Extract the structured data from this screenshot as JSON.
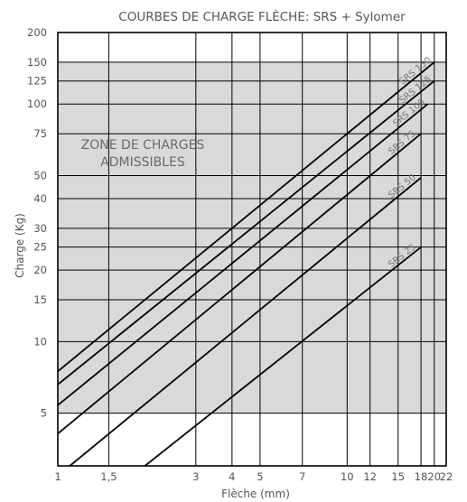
{
  "chart_data": {
    "type": "line",
    "title": "COURBES DE CHARGE FLÈCHE: SRS + Sylomer",
    "xlabel": "Flèche (mm)",
    "ylabel": "Charge (Kg)",
    "x_scale": "log",
    "y_scale": "log",
    "xlim": [
      1,
      22
    ],
    "ylim": [
      3,
      200
    ],
    "x_ticks": [
      1,
      1.5,
      3,
      4,
      5,
      7,
      10,
      12,
      15,
      18,
      20,
      22
    ],
    "x_tick_labels": [
      "1",
      "1,5",
      "3",
      "4",
      "5",
      "7",
      "10",
      "12",
      "15",
      "18",
      "20",
      "22"
    ],
    "y_ticks": [
      5,
      10,
      15,
      20,
      25,
      30,
      40,
      50,
      75,
      100,
      125,
      150,
      200
    ],
    "y_tick_labels": [
      "5",
      "10",
      "15",
      "20",
      "25",
      "30",
      "40",
      "50",
      "75",
      "100",
      "125",
      "150",
      "200"
    ],
    "grid": true,
    "shaded_region": {
      "label": "ZONE DE CHARGES ADMISSIBLES",
      "label_lines": [
        "ZONE DE CHARGES",
        "ADMISSIBLES"
      ],
      "y_range": [
        5,
        150
      ],
      "color": "#d9d9d9"
    },
    "series": [
      {
        "name": "SRS 150",
        "x": [
          1,
          20
        ],
        "y": [
          7.5,
          150
        ]
      },
      {
        "name": "SRS 125",
        "x": [
          1,
          20
        ],
        "y": [
          6.6,
          125
        ]
      },
      {
        "name": "SRS 100",
        "x": [
          1,
          19
        ],
        "y": [
          5.4,
          100
        ]
      },
      {
        "name": "SRS 75",
        "x": [
          1,
          18
        ],
        "y": [
          4.1,
          75
        ]
      },
      {
        "name": "SRS 50",
        "x": [
          1.1,
          18
        ],
        "y": [
          3,
          49
        ]
      },
      {
        "name": "SRS 25",
        "x": [
          2,
          18
        ],
        "y": [
          3,
          25
        ]
      }
    ]
  }
}
